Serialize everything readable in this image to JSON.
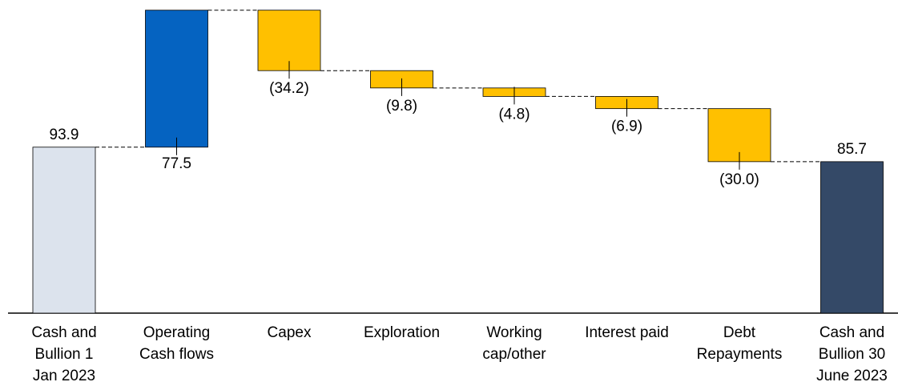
{
  "chart_data": {
    "type": "bar",
    "subtype": "waterfall",
    "title": "",
    "xlabel": "",
    "ylabel": "",
    "ylim": [
      0,
      175
    ],
    "grid": false,
    "legend": "none",
    "categories": [
      [
        "Cash and",
        "Bullion 1",
        "Jan 2023"
      ],
      [
        "Operating",
        "Cash flows"
      ],
      [
        "Capex"
      ],
      [
        "Exploration"
      ],
      [
        "Working",
        "cap/other"
      ],
      [
        "Interest paid"
      ],
      [
        "Debt",
        "Repayments"
      ],
      [
        "Cash and",
        "Bullion 30",
        "June 2023"
      ]
    ],
    "values": [
      93.9,
      77.5,
      -34.2,
      -9.8,
      -4.8,
      -6.9,
      -30.0,
      85.7
    ],
    "kinds": [
      "total",
      "increase",
      "decrease",
      "decrease",
      "decrease",
      "decrease",
      "decrease",
      "total"
    ],
    "value_labels": [
      "93.9",
      "77.5",
      "(34.2)",
      "(9.8)",
      "(4.8)",
      "(6.9)",
      "(30.0)",
      "85.7"
    ],
    "colors": [
      "#dce3ed",
      "#0563c1",
      "#ffc000",
      "#ffc000",
      "#ffc000",
      "#ffc000",
      "#ffc000",
      "#344967"
    ]
  }
}
